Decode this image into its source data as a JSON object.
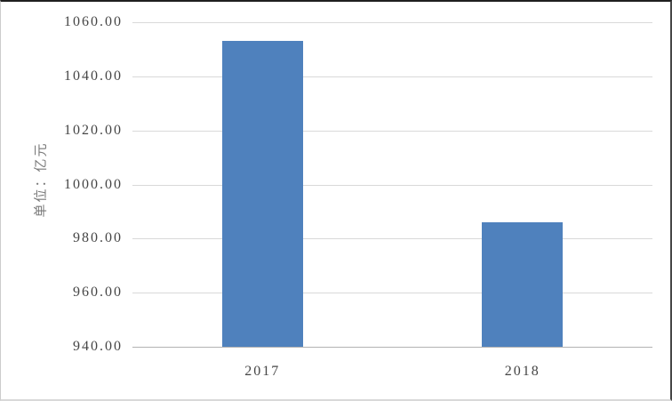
{
  "chart_data": {
    "type": "bar",
    "categories": [
      "2017",
      "2018"
    ],
    "values": [
      1053,
      986
    ],
    "title": "",
    "xlabel": "",
    "ylabel": "单位：亿元",
    "ylim": [
      940,
      1060
    ],
    "ytick_step": 20,
    "ytick_decimals": 2,
    "grid": true,
    "legend": "none",
    "colors": {
      "bar": "#4f81bd",
      "gridline": "#d9d9d9",
      "axis_line": "#b3b3b3",
      "tick_label": "#454545",
      "axis_title": "#7a7a7a",
      "background": "#ffffff"
    }
  }
}
